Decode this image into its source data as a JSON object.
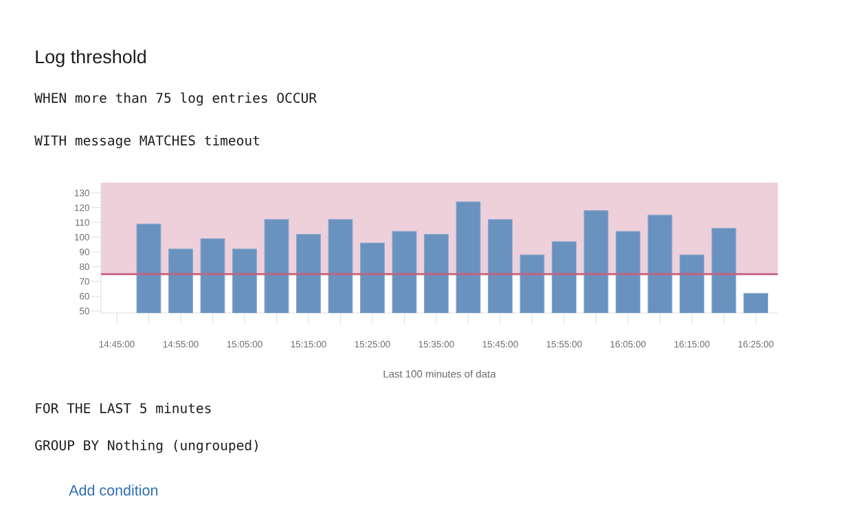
{
  "chart_data": {
    "type": "bar",
    "title": "Log threshold",
    "xlabel": "Last 100 minutes of data",
    "annotations": [
      "WHEN more than 75 log entries OCCUR",
      "WITH message MATCHES timeout",
      "FOR THE LAST 5 minutes",
      "GROUP BY Nothing (ungrouped)",
      "Add condition"
    ],
    "x": [
      14.8333,
      14.9167,
      15.0,
      15.0833,
      15.1667,
      15.25,
      15.3333,
      15.4167,
      15.5,
      15.5833,
      15.6667,
      15.75,
      15.8333,
      15.9167,
      16.0,
      16.0833,
      16.1667,
      16.25,
      16.3333,
      16.4167
    ],
    "values": [
      109,
      92,
      99,
      92,
      112,
      102,
      112,
      96,
      104,
      102,
      124,
      112,
      88,
      97,
      118,
      104,
      115,
      88,
      106,
      62
    ],
    "color": "#6a92bf",
    "xlim": [
      14.7088,
      16.474
    ],
    "ylim": [
      48.6,
      137
    ],
    "xticks": [
      {
        "value": 14.75,
        "label": "14:45:00"
      },
      {
        "value": 14.8333,
        "label": null
      },
      {
        "value": 14.9167,
        "label": "14:55:00"
      },
      {
        "value": 15.0,
        "label": null
      },
      {
        "value": 15.0833,
        "label": "15:05:00"
      },
      {
        "value": 15.1667,
        "label": null
      },
      {
        "value": 15.25,
        "label": "15:15:00"
      },
      {
        "value": 15.3333,
        "label": null
      },
      {
        "value": 15.4167,
        "label": "15:25:00"
      },
      {
        "value": 15.5,
        "label": null
      },
      {
        "value": 15.5833,
        "label": "15:35:00"
      },
      {
        "value": 15.6667,
        "label": null
      },
      {
        "value": 15.75,
        "label": "15:45:00"
      },
      {
        "value": 15.8333,
        "label": null
      },
      {
        "value": 15.9167,
        "label": "15:55:00"
      },
      {
        "value": 16.0,
        "label": null
      },
      {
        "value": 16.0833,
        "label": "16:05:00"
      },
      {
        "value": 16.1667,
        "label": null
      },
      {
        "value": 16.25,
        "label": "16:15:00"
      },
      {
        "value": 16.3333,
        "label": null
      },
      {
        "value": 16.4167,
        "label": "16:25:00"
      }
    ],
    "yticks": [
      50,
      60,
      70,
      80,
      90,
      100,
      110,
      120,
      130
    ],
    "ref_lines": [
      {
        "axis": "y",
        "value": 75,
        "color": "#c6617f"
      }
    ],
    "bands": [
      {
        "axis": "y",
        "from": 75,
        "to": 137,
        "color": "#eed0db"
      }
    ],
    "grid": false
  }
}
